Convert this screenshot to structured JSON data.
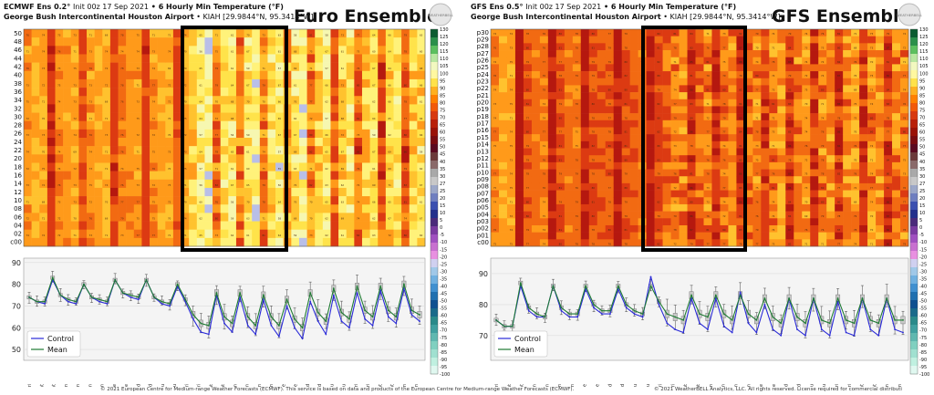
{
  "euro": {
    "model_label": "ECMWF Ens 0.2°",
    "init_text": "Init 00z 17 Sep 2021",
    "product": "6 Hourly Min Temperature (°F)",
    "station_name": "George Bush Intercontinental Houston Airport",
    "station_id": "KIAH [29.9844°N, 95.3414°W]",
    "big_title": "Euro Ensemble",
    "logo_text": "WEATHERBELL",
    "footer": "© 2021 European Centre for Medium-range Weather Forecasts (ECMWF). This service is based on data and products of the European Centre for Medium-range Weather Forecasts (ECMWF).",
    "member_labels": [
      "50",
      "48",
      "46",
      "44",
      "42",
      "40",
      "38",
      "36",
      "34",
      "32",
      "30",
      "28",
      "26",
      "24",
      "22",
      "20",
      "18",
      "16",
      "14",
      "12",
      "10",
      "08",
      "06",
      "04",
      "02",
      "c00"
    ]
  },
  "gfs": {
    "model_label": "GFS Ens 0.5°",
    "init_text": "Init 00z 17 Sep 2021",
    "product": "6 Hourly Min Temperature (°F)",
    "station_name": "George Bush Intercontinental Houston Airport",
    "station_id": "KIAH [29.9844°N, 95.3414°W]",
    "big_title": "GFS Ensemble",
    "logo_text": "WEATHERBELL",
    "footer": "© 2021 WeatherBELL Analytics, LLC. All rights reserved. License required for commercial distributi",
    "member_labels": [
      "p30",
      "p29",
      "p28",
      "p27",
      "p26",
      "p25",
      "p24",
      "p23",
      "p22",
      "p21",
      "p20",
      "p19",
      "p18",
      "p17",
      "p16",
      "p15",
      "p14",
      "p13",
      "p12",
      "p11",
      "p10",
      "p09",
      "p08",
      "p07",
      "p06",
      "p05",
      "p04",
      "p03",
      "p02",
      "p01",
      "c00"
    ]
  },
  "legend": {
    "control": "Control",
    "mean": "Mean"
  },
  "day_labels": [
    "Fri",
    "Sat",
    "Sat",
    "Sun",
    "Sun",
    "Mon",
    "Mon",
    "Tue",
    "Tue",
    "Wed",
    "Wed",
    "Thu",
    "Thu",
    "Fri",
    "Fri",
    "Sat",
    "Sat",
    "Sun",
    "Sun",
    "Mon",
    "Mon",
    "Tue",
    "Tue",
    "Wed",
    "Wed",
    "Thu",
    "Thu",
    "Fri",
    "Fri",
    "Sat",
    "Sat",
    "Sun",
    "Sun"
  ],
  "colorbar": {
    "ticks": [
      130,
      125,
      120,
      115,
      110,
      105,
      100,
      95,
      90,
      85,
      80,
      75,
      70,
      65,
      60,
      55,
      50,
      45,
      40,
      35,
      30,
      27,
      25,
      20,
      15,
      10,
      5,
      0,
      -5,
      -10,
      -15,
      -20,
      -25,
      -30,
      -35,
      -40,
      -45,
      -50,
      -55,
      -60,
      -65,
      -70,
      -75,
      -80,
      -85,
      -90,
      -95,
      -100
    ],
    "colors": [
      "#0b5b30",
      "#2a8f4a",
      "#5cbf5f",
      "#b8e6a0",
      "#f2f8c0",
      "#fff8a0",
      "#ffe24a",
      "#ffb020",
      "#ff8000",
      "#f25a0a",
      "#d83a10",
      "#b8200a",
      "#9a1208",
      "#7a0c10",
      "#5a0a20",
      "#6b3a3a",
      "#8a6a6a",
      "#a9a9a9",
      "#c8c8c8",
      "#9ba7c8",
      "#6f7fc0",
      "#3b4fb0",
      "#23308c",
      "#4a2a7a",
      "#7a3aa0",
      "#a050c0",
      "#c870d0",
      "#e890e0",
      "#d0d0f0",
      "#a0c8e8",
      "#70b0e0",
      "#4090d0",
      "#2070b0",
      "#105090",
      "#1a6a8a",
      "#2a8a8a",
      "#40a0a0",
      "#60b8b0",
      "#80d0c0",
      "#a0e0d0",
      "#c0f0e0",
      "#e0f8f0"
    ]
  },
  "chart_data": [
    {
      "type": "heatmap+box",
      "title": "ECMWF Ens 0.2° Init 00z 17 Sep 2021 6 Hourly Min Temperature (°F)",
      "members": 51,
      "ylim": [
        45,
        92
      ],
      "yticks": [
        50,
        60,
        70,
        80,
        90
      ],
      "control": [
        74,
        72,
        71,
        82,
        75,
        72,
        71,
        80,
        74,
        72,
        71,
        82,
        76,
        74,
        73,
        82,
        74,
        71,
        70,
        79,
        72,
        64,
        58,
        57,
        75,
        62,
        58,
        74,
        61,
        57,
        73,
        61,
        56,
        70,
        60,
        55,
        72,
        63,
        57,
        75,
        63,
        60,
        76,
        64,
        61,
        77,
        65,
        62,
        78,
        66,
        63
      ],
      "mean": [
        74,
        72,
        72,
        83,
        75,
        73,
        72,
        80,
        74,
        73,
        72,
        82,
        76,
        75,
        74,
        82,
        74,
        72,
        71,
        80,
        73,
        66,
        62,
        61,
        76,
        65,
        62,
        76,
        65,
        61,
        75,
        65,
        61,
        73,
        64,
        60,
        76,
        67,
        63,
        78,
        67,
        64,
        79,
        68,
        65,
        79,
        68,
        65,
        80,
        68,
        66
      ]
    },
    {
      "type": "heatmap+box",
      "title": "GFS Ens 0.5° Init 00z 17 Sep 2021 6 Hourly Min Temperature (°F)",
      "members": 31,
      "ylim": [
        62,
        95
      ],
      "yticks": [
        70,
        80,
        90
      ],
      "control": [
        75,
        73,
        73,
        86,
        78,
        76,
        76,
        86,
        78,
        76,
        76,
        85,
        79,
        77,
        77,
        85,
        79,
        77,
        76,
        89,
        80,
        74,
        72,
        71,
        82,
        74,
        72,
        82,
        73,
        71,
        84,
        74,
        71,
        80,
        72,
        70,
        82,
        72,
        70,
        82,
        72,
        70,
        81,
        71,
        70,
        82,
        72,
        70,
        82,
        72,
        71
      ],
      "mean": [
        75,
        73,
        73,
        87,
        79,
        77,
        76,
        86,
        79,
        77,
        77,
        86,
        80,
        78,
        78,
        86,
        80,
        78,
        77,
        86,
        81,
        77,
        76,
        75,
        83,
        77,
        76,
        83,
        77,
        75,
        83,
        77,
        75,
        82,
        76,
        74,
        82,
        76,
        74,
        82,
        75,
        74,
        82,
        75,
        74,
        82,
        75,
        74,
        82,
        75,
        75
      ]
    }
  ]
}
